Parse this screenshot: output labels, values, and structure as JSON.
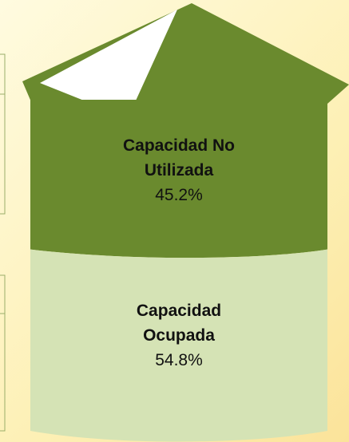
{
  "chart_data": {
    "type": "pictorial-silo",
    "categories": [
      "Capacidad No Utilizada",
      "Capacidad Ocupada"
    ],
    "values": [
      45.2,
      54.8
    ],
    "value_labels": [
      "45.2%",
      "54.8%"
    ],
    "colors": [
      "#6a8a2e",
      "#d5e3b5"
    ]
  }
}
